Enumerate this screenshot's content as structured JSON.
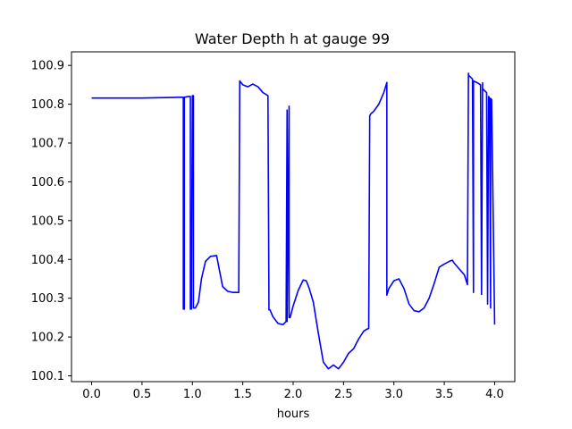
{
  "chart_data": {
    "type": "line",
    "title": "Water Depth h at gauge 99",
    "xlabel": "hours",
    "ylabel": "",
    "xlim": [
      -0.2,
      4.2
    ],
    "ylim": [
      100.085,
      100.935
    ],
    "grid": false,
    "x_ticks": [
      {
        "value": 0.0,
        "label": "0.0"
      },
      {
        "value": 0.5,
        "label": "0.5"
      },
      {
        "value": 1.0,
        "label": "1.0"
      },
      {
        "value": 1.5,
        "label": "1.5"
      },
      {
        "value": 2.0,
        "label": "2.0"
      },
      {
        "value": 2.5,
        "label": "2.5"
      },
      {
        "value": 3.0,
        "label": "3.0"
      },
      {
        "value": 3.5,
        "label": "3.5"
      },
      {
        "value": 4.0,
        "label": "4.0"
      }
    ],
    "y_ticks": [
      {
        "value": 100.1,
        "label": "100.1"
      },
      {
        "value": 100.2,
        "label": "100.2"
      },
      {
        "value": 100.3,
        "label": "100.3"
      },
      {
        "value": 100.4,
        "label": "100.4"
      },
      {
        "value": 100.5,
        "label": "100.5"
      },
      {
        "value": 100.6,
        "label": "100.6"
      },
      {
        "value": 100.7,
        "label": "100.7"
      },
      {
        "value": 100.8,
        "label": "100.8"
      },
      {
        "value": 100.9,
        "label": "100.9"
      }
    ],
    "series": [
      {
        "color": "#0000ff",
        "x": [
          0.0,
          0.5,
          0.9,
          0.91,
          0.91,
          0.92,
          0.92,
          0.96,
          0.97,
          0.98,
          0.98,
          0.99,
          1.0,
          1.01,
          1.01,
          1.03,
          1.06,
          1.09,
          1.13,
          1.18,
          1.24,
          1.27,
          1.3,
          1.35,
          1.4,
          1.45,
          1.46,
          1.47,
          1.5,
          1.55,
          1.6,
          1.65,
          1.7,
          1.75,
          1.76,
          1.77,
          1.8,
          1.85,
          1.9,
          1.93,
          1.94,
          1.94,
          1.96,
          1.96,
          1.97,
          2.0,
          2.05,
          2.1,
          2.13,
          2.16,
          2.2,
          2.25,
          2.3,
          2.35,
          2.4,
          2.45,
          2.5,
          2.55,
          2.6,
          2.65,
          2.7,
          2.73,
          2.75,
          2.76,
          2.77,
          2.8,
          2.85,
          2.9,
          2.93,
          2.93,
          2.95,
          3.0,
          3.05,
          3.1,
          3.15,
          3.2,
          3.25,
          3.3,
          3.35,
          3.4,
          3.45,
          3.5,
          3.55,
          3.58,
          3.6,
          3.65,
          3.7,
          3.73,
          3.74,
          3.74,
          3.78,
          3.79,
          3.79,
          3.83,
          3.86,
          3.87,
          3.88,
          3.88,
          3.92,
          3.93,
          3.94,
          3.95,
          3.96,
          3.96,
          3.97,
          4.0
        ],
        "y": [
          100.816,
          100.816,
          100.818,
          100.818,
          100.272,
          100.272,
          100.818,
          100.82,
          100.82,
          100.82,
          100.272,
          100.272,
          100.822,
          100.822,
          100.275,
          100.275,
          100.29,
          100.35,
          100.395,
          100.408,
          100.41,
          100.37,
          100.33,
          100.318,
          100.315,
          100.315,
          100.315,
          100.86,
          100.85,
          100.845,
          100.852,
          100.845,
          100.83,
          100.822,
          100.27,
          100.27,
          100.252,
          100.235,
          100.232,
          100.24,
          100.785,
          100.24,
          100.795,
          100.25,
          100.25,
          100.28,
          100.32,
          100.347,
          100.345,
          100.325,
          100.29,
          100.21,
          100.135,
          100.118,
          100.128,
          100.118,
          100.135,
          100.158,
          100.17,
          100.195,
          100.215,
          100.22,
          100.222,
          100.77,
          100.775,
          100.782,
          100.8,
          100.83,
          100.856,
          100.308,
          100.325,
          100.345,
          100.35,
          100.325,
          100.285,
          100.268,
          100.265,
          100.275,
          100.3,
          100.338,
          100.38,
          100.388,
          100.395,
          100.398,
          100.39,
          100.375,
          100.36,
          100.335,
          100.88,
          100.875,
          100.865,
          100.315,
          100.86,
          100.855,
          100.85,
          100.31,
          100.855,
          100.84,
          100.83,
          100.285,
          100.82,
          100.815,
          100.275,
          100.815,
          100.812,
          100.232
        ]
      }
    ]
  }
}
